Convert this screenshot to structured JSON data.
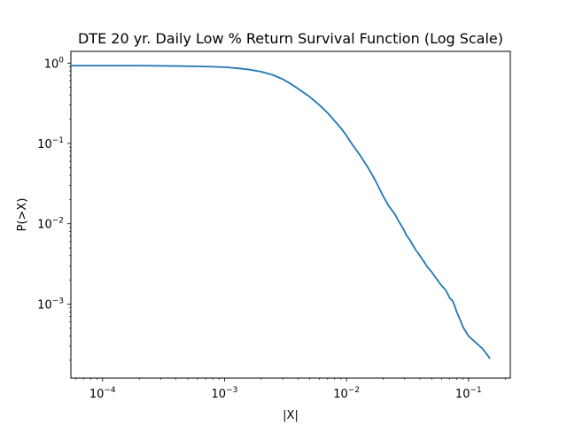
{
  "chart_data": {
    "type": "line",
    "title": "DTE 20 yr. Daily Low % Return Survival Function (Log Scale)",
    "xlabel": "|X|",
    "ylabel": "P(>X)",
    "xscale": "log",
    "yscale": "log",
    "xlim": [
      5.5e-05,
      0.22
    ],
    "ylim": [
      0.00012,
      1.4
    ],
    "x_ticks": [
      {
        "value": 0.0001,
        "base": "10",
        "exp": "−4"
      },
      {
        "value": 0.001,
        "base": "10",
        "exp": "−3"
      },
      {
        "value": 0.01,
        "base": "10",
        "exp": "−2"
      },
      {
        "value": 0.1,
        "base": "10",
        "exp": "−1"
      }
    ],
    "y_ticks": [
      {
        "value": 1,
        "base": "10",
        "exp": "0"
      },
      {
        "value": 0.1,
        "base": "10",
        "exp": "−1"
      },
      {
        "value": 0.01,
        "base": "10",
        "exp": "−2"
      },
      {
        "value": 0.001,
        "base": "10",
        "exp": "−3"
      }
    ],
    "grid": false,
    "legend": false,
    "series": [
      {
        "color": "#1f77b4",
        "x": [
          5.5e-05,
          0.0001,
          0.0002,
          0.0004,
          0.0006,
          0.0008,
          0.001,
          0.0013,
          0.0016,
          0.002,
          0.0025,
          0.003,
          0.0035,
          0.004,
          0.005,
          0.006,
          0.007,
          0.008,
          0.009,
          0.01,
          0.011,
          0.013,
          0.015,
          0.017,
          0.02,
          0.022,
          0.025,
          0.027,
          0.029,
          0.031,
          0.033,
          0.035,
          0.037,
          0.04,
          0.043,
          0.046,
          0.05,
          0.053,
          0.057,
          0.06,
          0.065,
          0.07,
          0.074,
          0.077,
          0.08,
          0.085,
          0.09,
          0.1,
          0.13,
          0.15
        ],
        "y": [
          0.93,
          0.93,
          0.93,
          0.92,
          0.91,
          0.9,
          0.89,
          0.86,
          0.83,
          0.78,
          0.71,
          0.63,
          0.55,
          0.48,
          0.38,
          0.3,
          0.24,
          0.19,
          0.155,
          0.125,
          0.1,
          0.07,
          0.05,
          0.036,
          0.022,
          0.017,
          0.013,
          0.0105,
          0.0088,
          0.0072,
          0.0063,
          0.0054,
          0.0047,
          0.004,
          0.0034,
          0.0029,
          0.0025,
          0.0022,
          0.0019,
          0.0017,
          0.0015,
          0.0012,
          0.0011,
          0.00095,
          0.0008,
          0.00065,
          0.00052,
          0.0004,
          0.00028,
          0.00021
        ]
      }
    ]
  }
}
